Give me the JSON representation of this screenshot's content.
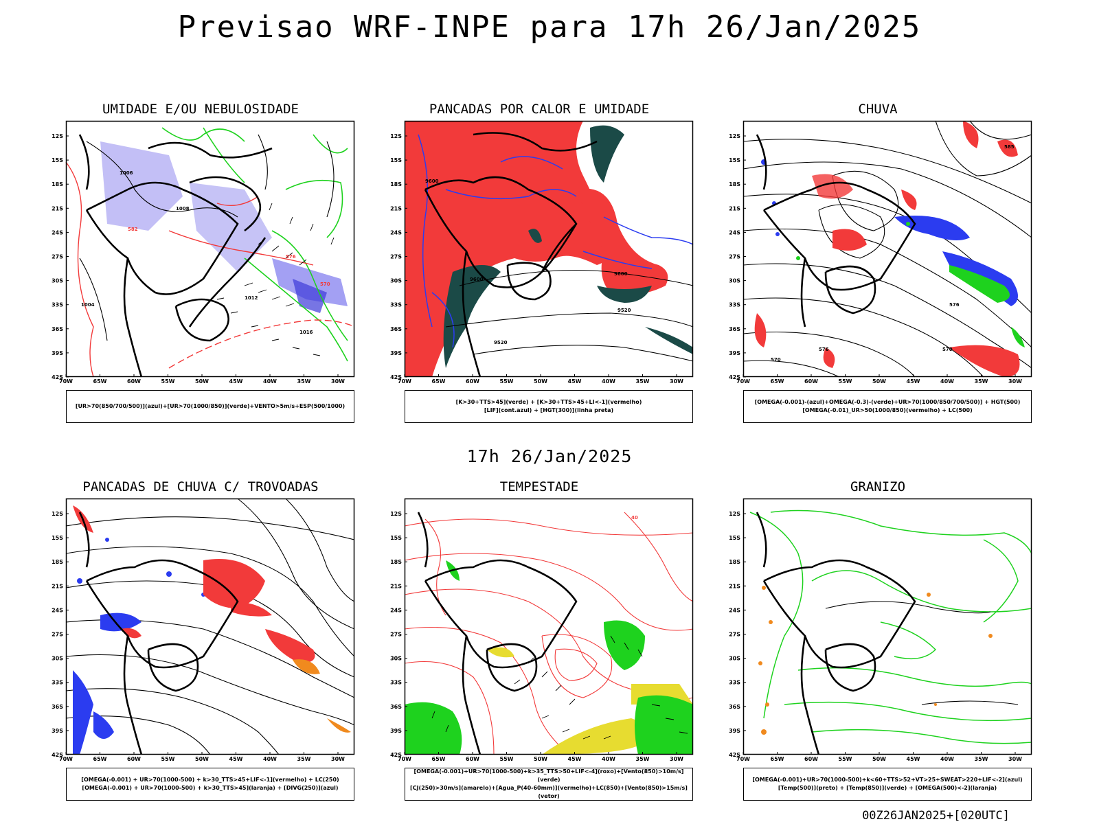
{
  "title": "Previsao WRF-INPE  para 17h 26/Jan/2025",
  "subtitle": "17h 26/Jan/2025",
  "footer": "00Z26JAN2025+[020UTC]",
  "lat_labels": [
    "12S",
    "15S",
    "18S",
    "21S",
    "24S",
    "27S",
    "30S",
    "33S",
    "36S",
    "39S",
    "42S"
  ],
  "lon_labels": [
    "70W",
    "65W",
    "60W",
    "55W",
    "50W",
    "45W",
    "40W",
    "35W",
    "30W"
  ],
  "colors": {
    "red": "#f23a3a",
    "lavender": "#b8b4f4",
    "blue": "#2b3cf0",
    "green": "#1ed21e",
    "darkteal": "#1b4a47",
    "yellow": "#e7dc30",
    "orange": "#f08a1e"
  },
  "panels": [
    {
      "id": "umidade",
      "title": "UMIDADE E/OU NEBULOSIDADE",
      "caption": [
        "[UR>70(850/700/500)](azul)+[UR>70(1000/850)](verde)+VENTO>5m/s+ESP(500/1000)"
      ],
      "contour_labels": [
        "1008",
        "1012",
        "1016",
        "1006",
        "1004",
        "576",
        "582",
        "570"
      ]
    },
    {
      "id": "pancadas_calor",
      "title": "PANCADAS POR CALOR E UMIDADE",
      "caption": [
        "[K>30+TTS>45](verde) + [K>30+TTS>45+LI<-1](vermelho)",
        "[LIF](cont.azul) + [HGT(300)](linha preta)"
      ],
      "contour_labels": [
        "9600",
        "9520",
        "9560"
      ]
    },
    {
      "id": "chuva",
      "title": "CHUVA",
      "caption": [
        "[OMEGA(-0.001)-(azul)+OMEGA(-0.3)-(verde)+UR>70(1000/850/700/500)] + HGT(500)",
        "[OMEGA(-0.01)_UR>50(1000/850)(vermelho) + LC(500)"
      ],
      "contour_labels": [
        "585",
        "576",
        "570"
      ]
    },
    {
      "id": "trovoadas",
      "title": "PANCADAS DE CHUVA C/ TROVOADAS",
      "caption": [
        "[OMEGA(-0.001) + UR>70(1000-500) + k>30_TTS>45+LIF<-1](vermelho) + LC(250)",
        "[OMEGA(-0.001) + UR>70(1000-500) + k>30_TTS>45](laranja) + [DIVG(250)](azul)"
      ],
      "contour_labels": []
    },
    {
      "id": "tempestade",
      "title": "TEMPESTADE",
      "caption": [
        "[OMEGA(-0.001)+UR>70(1000-500)+k>35_TTS>50+LIF<-4](roxo)+[Vento(850)>10m/s](verde)",
        "[CJ(250)>30m/s](amarelo)+[Agua_P(40-60mm)](vermelho)+LC(850)+[Vento(850)>15m/s](vetor)"
      ],
      "contour_labels": [
        "40"
      ]
    },
    {
      "id": "granizo",
      "title": "GRANIZO",
      "caption": [
        "[OMEGA(-0.001)+UR>70(1000-500)+k<60+TTS>52+VT>25+SWEAT>220+LIF<-2](azul)",
        "[Temp(500)](preto) + [Temp(850)](verde) + [OMEGA(500)<-2](laranja)"
      ],
      "contour_labels": []
    }
  ]
}
